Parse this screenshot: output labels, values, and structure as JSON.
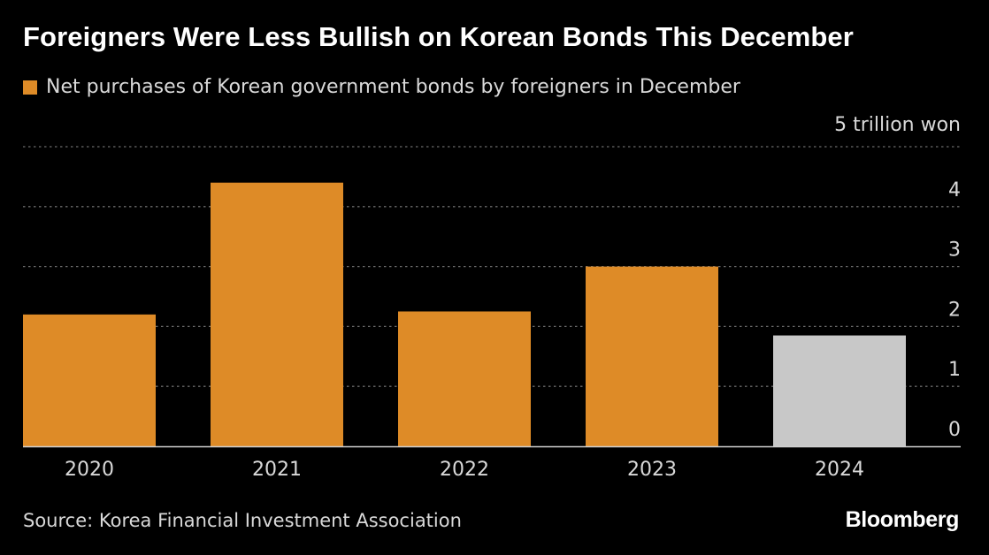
{
  "chart_data": {
    "type": "bar",
    "title": "Foreigners Were Less Bullish on Korean Bonds This December",
    "legend": [
      {
        "name": "Net purchases of Korean government bonds by foreigners in December",
        "color": "#de8b27"
      }
    ],
    "unit_label": "5 trillion won",
    "categories": [
      "2020",
      "2021",
      "2022",
      "2023",
      "2024"
    ],
    "series": [
      {
        "name": "Net purchases of Korean government bonds by foreigners in December",
        "values": [
          2.2,
          4.4,
          2.25,
          3.0,
          1.85
        ]
      }
    ],
    "bar_colors": [
      "#de8b27",
      "#de8b27",
      "#de8b27",
      "#de8b27",
      "#c8c8c8"
    ],
    "yticks": [
      "0",
      "1",
      "2",
      "3",
      "4"
    ],
    "ylim": [
      0,
      5
    ],
    "grid": true,
    "legend_position": "top-left",
    "source": "Source: Korea Financial Investment Association",
    "brand": "Bloomberg"
  }
}
